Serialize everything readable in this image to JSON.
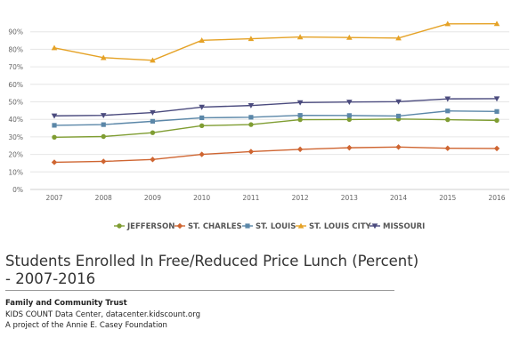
{
  "chart_data": {
    "type": "line",
    "title": "Students Enrolled In Free/Reduced Price Lunch (Percent) - 2007-2016",
    "categories": [
      "2007",
      "2008",
      "2009",
      "2010",
      "2011",
      "2012",
      "2013",
      "2014",
      "2015",
      "2016"
    ],
    "ylim": [
      0,
      100
    ],
    "yticks": [
      "0%",
      "10%",
      "20%",
      "30%",
      "40%",
      "50%",
      "60%",
      "70%",
      "80%",
      "90%"
    ],
    "grid": true,
    "legend": "bottom",
    "series": [
      {
        "name": "JEFFERSON",
        "color": "#7f9d32",
        "marker": "circle",
        "values": [
          29.8,
          30.2,
          32.4,
          36.4,
          37.0,
          39.8,
          39.9,
          40.2,
          39.8,
          39.4
        ]
      },
      {
        "name": "ST. CHARLES",
        "color": "#cf6531",
        "marker": "diamond",
        "values": [
          15.5,
          16.0,
          17.1,
          20.0,
          21.6,
          22.9,
          23.8,
          24.2,
          23.5,
          23.4
        ]
      },
      {
        "name": "ST. LOUIS",
        "color": "#5b87a8",
        "marker": "square",
        "values": [
          36.6,
          37.0,
          38.9,
          40.9,
          41.2,
          42.3,
          42.2,
          41.9,
          44.8,
          44.5
        ]
      },
      {
        "name": "ST. LOUIS CITY",
        "color": "#e5a226",
        "marker": "triangle-up",
        "values": [
          80.8,
          75.2,
          73.7,
          85.1,
          86.0,
          87.0,
          86.7,
          86.4,
          94.5,
          94.6
        ]
      },
      {
        "name": "MISSOURI",
        "color": "#4b4b7e",
        "marker": "triangle-down",
        "values": [
          42.0,
          42.3,
          43.9,
          47.0,
          47.9,
          49.6,
          49.9,
          50.1,
          51.7,
          51.8
        ]
      }
    ]
  },
  "footer": {
    "title": "Students Enrolled In Free/Reduced Price Lunch (Percent) - 2007-2016",
    "org": "Family and Community Trust",
    "source_line1": "KIDS COUNT Data Center, datacenter.kidscount.org",
    "source_line2": "A project of the Annie E. Casey Foundation"
  }
}
